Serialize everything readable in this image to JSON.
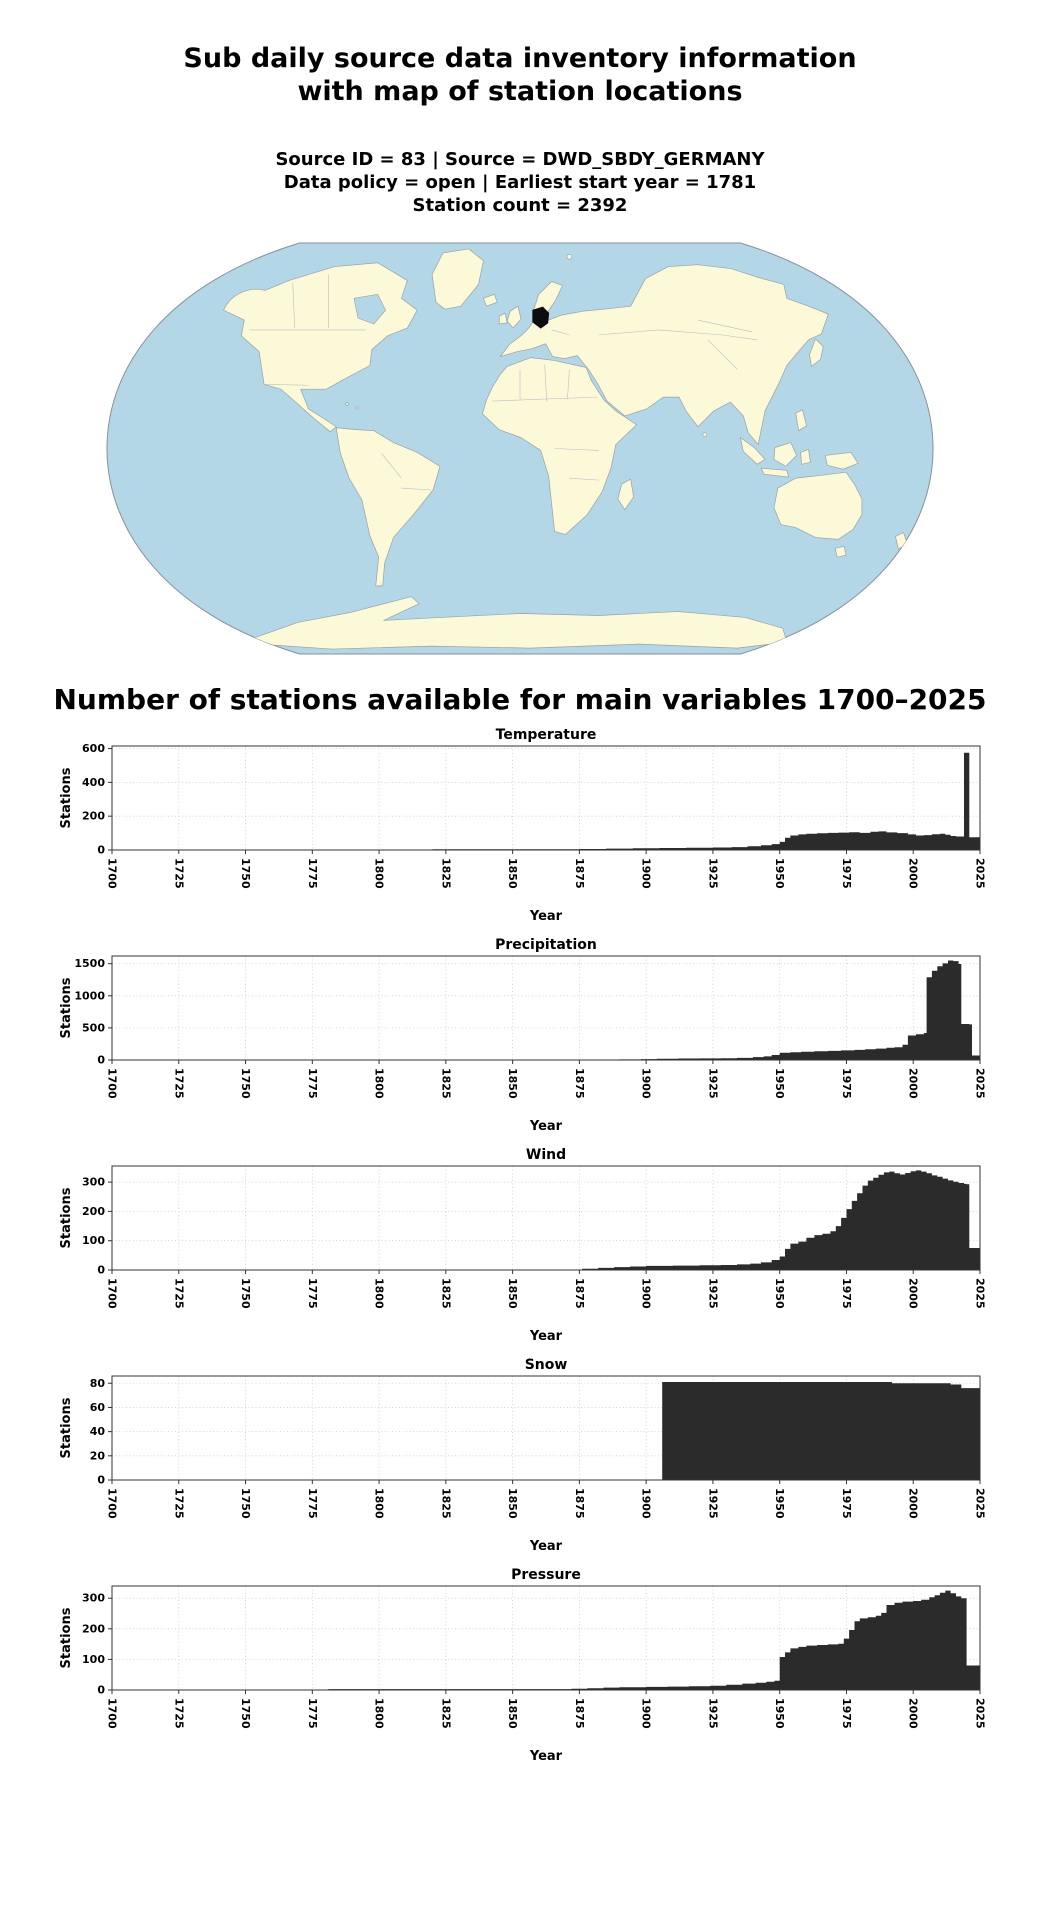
{
  "page": {
    "title_line1": "Sub daily source data inventory information",
    "title_line2": "with map of station locations",
    "subtitle_line1": "Source ID = 83 | Source = DWD_SBDY_GERMANY",
    "subtitle_line2": "Data policy = open | Earliest start year = 1781",
    "subtitle_line3": "Station count = 2392",
    "section_heading": "Number of stations available for main variables 1700–2025"
  },
  "map": {
    "highlighted_country": "Germany"
  },
  "colors": {
    "ocean": "#b3d7e6",
    "land": "#fcf9d8",
    "country_border": "#9aa0a6",
    "highlight": "#0d0d0d",
    "bar": "#2b2b2b",
    "grid": "#cccccc",
    "axis": "#333333"
  },
  "chart_data": [
    {
      "id": "temperature",
      "type": "bar",
      "title": "Temperature",
      "xlabel": "Year",
      "ylabel": "Stations",
      "xlim": [
        1700,
        2025
      ],
      "ylim": [
        0,
        615
      ],
      "xticks": [
        1700,
        1725,
        1750,
        1775,
        1800,
        1825,
        1850,
        1875,
        1900,
        1925,
        1950,
        1975,
        2000,
        2025
      ],
      "yticks": [
        0,
        200,
        400,
        600
      ],
      "grid": true,
      "points": [
        [
          1700,
          0
        ],
        [
          1779,
          0
        ],
        [
          1781,
          3
        ],
        [
          1820,
          4
        ],
        [
          1850,
          5
        ],
        [
          1875,
          6
        ],
        [
          1885,
          8
        ],
        [
          1895,
          10
        ],
        [
          1905,
          12
        ],
        [
          1915,
          13
        ],
        [
          1925,
          15
        ],
        [
          1932,
          17
        ],
        [
          1938,
          22
        ],
        [
          1943,
          28
        ],
        [
          1947,
          35
        ],
        [
          1950,
          48
        ],
        [
          1952,
          72
        ],
        [
          1954,
          86
        ],
        [
          1957,
          92
        ],
        [
          1960,
          96
        ],
        [
          1964,
          99
        ],
        [
          1968,
          101
        ],
        [
          1972,
          103
        ],
        [
          1976,
          105
        ],
        [
          1980,
          101
        ],
        [
          1984,
          108
        ],
        [
          1987,
          110
        ],
        [
          1990,
          104
        ],
        [
          1994,
          100
        ],
        [
          1998,
          92
        ],
        [
          2001,
          86
        ],
        [
          2004,
          88
        ],
        [
          2007,
          93
        ],
        [
          2010,
          96
        ],
        [
          2012,
          90
        ],
        [
          2014,
          83
        ],
        [
          2016,
          80
        ],
        [
          2018,
          80
        ],
        [
          2019,
          575
        ],
        [
          2021,
          75
        ],
        [
          2025,
          75
        ]
      ]
    },
    {
      "id": "precipitation",
      "type": "bar",
      "title": "Precipitation",
      "xlabel": "Year",
      "ylabel": "Stations",
      "xlim": [
        1700,
        2025
      ],
      "ylim": [
        0,
        1620
      ],
      "xticks": [
        1700,
        1725,
        1750,
        1775,
        1800,
        1825,
        1850,
        1875,
        1900,
        1925,
        1950,
        1975,
        2000,
        2025
      ],
      "yticks": [
        0,
        500,
        1000,
        1500
      ],
      "grid": true,
      "points": [
        [
          1700,
          0
        ],
        [
          1878,
          0
        ],
        [
          1881,
          4
        ],
        [
          1890,
          9
        ],
        [
          1898,
          14
        ],
        [
          1904,
          20
        ],
        [
          1912,
          23
        ],
        [
          1920,
          25
        ],
        [
          1928,
          28
        ],
        [
          1934,
          33
        ],
        [
          1940,
          45
        ],
        [
          1944,
          56
        ],
        [
          1947,
          78
        ],
        [
          1950,
          112
        ],
        [
          1954,
          122
        ],
        [
          1958,
          130
        ],
        [
          1963,
          136
        ],
        [
          1968,
          142
        ],
        [
          1973,
          150
        ],
        [
          1978,
          158
        ],
        [
          1982,
          166
        ],
        [
          1986,
          178
        ],
        [
          1990,
          192
        ],
        [
          1993,
          200
        ],
        [
          1996,
          238
        ],
        [
          1998,
          382
        ],
        [
          2001,
          402
        ],
        [
          2004,
          420
        ],
        [
          2005,
          1290
        ],
        [
          2007,
          1390
        ],
        [
          2009,
          1460
        ],
        [
          2011,
          1505
        ],
        [
          2013,
          1550
        ],
        [
          2015,
          1540
        ],
        [
          2017,
          1495
        ],
        [
          2018,
          560
        ],
        [
          2021,
          555
        ],
        [
          2022,
          70
        ],
        [
          2025,
          70
        ]
      ]
    },
    {
      "id": "wind",
      "type": "bar",
      "title": "Wind",
      "xlabel": "Year",
      "ylabel": "Stations",
      "xlim": [
        1700,
        2025
      ],
      "ylim": [
        0,
        355
      ],
      "xticks": [
        1700,
        1725,
        1750,
        1775,
        1800,
        1825,
        1850,
        1875,
        1900,
        1925,
        1950,
        1975,
        2000,
        2025
      ],
      "yticks": [
        0,
        100,
        200,
        300
      ],
      "grid": true,
      "points": [
        [
          1700,
          0
        ],
        [
          1873,
          0
        ],
        [
          1876,
          4
        ],
        [
          1882,
          7
        ],
        [
          1888,
          10
        ],
        [
          1894,
          12
        ],
        [
          1900,
          14
        ],
        [
          1910,
          15
        ],
        [
          1920,
          16
        ],
        [
          1928,
          17
        ],
        [
          1934,
          19
        ],
        [
          1939,
          22
        ],
        [
          1943,
          26
        ],
        [
          1947,
          34
        ],
        [
          1950,
          46
        ],
        [
          1952,
          72
        ],
        [
          1954,
          90
        ],
        [
          1957,
          97
        ],
        [
          1960,
          110
        ],
        [
          1963,
          119
        ],
        [
          1966,
          124
        ],
        [
          1969,
          132
        ],
        [
          1971,
          150
        ],
        [
          1973,
          178
        ],
        [
          1975,
          208
        ],
        [
          1977,
          236
        ],
        [
          1979,
          262
        ],
        [
          1981,
          288
        ],
        [
          1983,
          305
        ],
        [
          1985,
          315
        ],
        [
          1987,
          325
        ],
        [
          1989,
          333
        ],
        [
          1991,
          336
        ],
        [
          1993,
          330
        ],
        [
          1995,
          326
        ],
        [
          1997,
          331
        ],
        [
          1999,
          337
        ],
        [
          2001,
          340
        ],
        [
          2003,
          336
        ],
        [
          2005,
          330
        ],
        [
          2007,
          323
        ],
        [
          2009,
          318
        ],
        [
          2011,
          312
        ],
        [
          2013,
          306
        ],
        [
          2015,
          301
        ],
        [
          2017,
          297
        ],
        [
          2019,
          294
        ],
        [
          2020,
          293
        ],
        [
          2021,
          75
        ],
        [
          2025,
          75
        ]
      ]
    },
    {
      "id": "snow",
      "type": "bar",
      "title": "Snow",
      "xlabel": "Year",
      "ylabel": "Stations",
      "xlim": [
        1700,
        2025
      ],
      "ylim": [
        0,
        86
      ],
      "xticks": [
        1700,
        1725,
        1750,
        1775,
        1800,
        1825,
        1850,
        1875,
        1900,
        1925,
        1950,
        1975,
        2000,
        2025
      ],
      "yticks": [
        0,
        20,
        40,
        60,
        80
      ],
      "grid": true,
      "points": [
        [
          1700,
          0
        ],
        [
          1904,
          0
        ],
        [
          1906,
          81
        ],
        [
          1990,
          81
        ],
        [
          1992,
          80
        ],
        [
          2012,
          80
        ],
        [
          2014,
          79
        ],
        [
          2017,
          79
        ],
        [
          2018,
          76
        ],
        [
          2025,
          76
        ]
      ]
    },
    {
      "id": "pressure",
      "type": "bar",
      "title": "Pressure",
      "xlabel": "Year",
      "ylabel": "Stations",
      "xlim": [
        1700,
        2025
      ],
      "ylim": [
        0,
        340
      ],
      "xticks": [
        1700,
        1725,
        1750,
        1775,
        1800,
        1825,
        1850,
        1875,
        1900,
        1925,
        1950,
        1975,
        2000,
        2025
      ],
      "yticks": [
        0,
        100,
        200,
        300
      ],
      "grid": true,
      "points": [
        [
          1700,
          0
        ],
        [
          1779,
          0
        ],
        [
          1781,
          3
        ],
        [
          1850,
          3
        ],
        [
          1872,
          4
        ],
        [
          1878,
          6
        ],
        [
          1884,
          8
        ],
        [
          1890,
          9
        ],
        [
          1900,
          10
        ],
        [
          1908,
          11
        ],
        [
          1916,
          12
        ],
        [
          1924,
          14
        ],
        [
          1930,
          17
        ],
        [
          1936,
          21
        ],
        [
          1941,
          24
        ],
        [
          1945,
          27
        ],
        [
          1948,
          30
        ],
        [
          1950,
          108
        ],
        [
          1952,
          123
        ],
        [
          1954,
          136
        ],
        [
          1957,
          141
        ],
        [
          1960,
          145
        ],
        [
          1964,
          147
        ],
        [
          1968,
          149
        ],
        [
          1972,
          151
        ],
        [
          1974,
          168
        ],
        [
          1976,
          196
        ],
        [
          1978,
          225
        ],
        [
          1980,
          234
        ],
        [
          1983,
          238
        ],
        [
          1986,
          243
        ],
        [
          1988,
          252
        ],
        [
          1990,
          278
        ],
        [
          1993,
          285
        ],
        [
          1996,
          289
        ],
        [
          2000,
          291
        ],
        [
          2003,
          295
        ],
        [
          2006,
          303
        ],
        [
          2008,
          310
        ],
        [
          2010,
          318
        ],
        [
          2012,
          325
        ],
        [
          2014,
          316
        ],
        [
          2016,
          306
        ],
        [
          2018,
          300
        ],
        [
          2019,
          300
        ],
        [
          2020,
          80
        ],
        [
          2025,
          80
        ]
      ]
    }
  ]
}
